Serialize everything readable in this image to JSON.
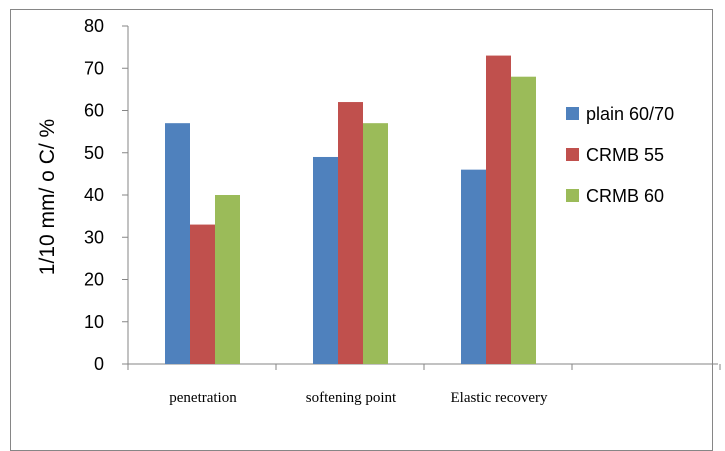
{
  "chart_data": {
    "type": "bar",
    "title": "",
    "xlabel": "",
    "ylabel": "1/10 mm/ o C/ %",
    "ylim": [
      0,
      80
    ],
    "yticks": [
      0,
      10,
      20,
      30,
      40,
      50,
      60,
      70,
      80
    ],
    "categories": [
      "penetration",
      "softening point",
      "Elastic recovery"
    ],
    "series": [
      {
        "name": "plain 60/70",
        "color": "#4F81BD",
        "values": [
          57,
          49,
          46
        ]
      },
      {
        "name": "CRMB 55",
        "color": "#C0504D",
        "values": [
          33,
          62,
          73
        ]
      },
      {
        "name": "CRMB 60",
        "color": "#9BBB59",
        "values": [
          40,
          57,
          68
        ]
      }
    ],
    "grid": false,
    "legend": "right"
  }
}
